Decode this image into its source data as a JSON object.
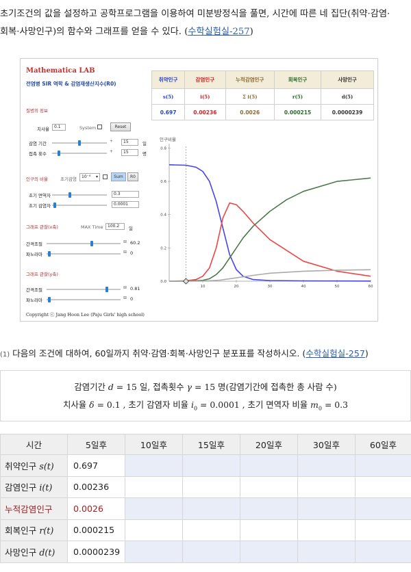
{
  "intro": {
    "line1": "초기조건의 값을 설정하고 공학프로그램을 이용하여 미분방정식을 풀면, 시간에 따른 네 집단(취약·감염·",
    "line2": "회복·사망인구)의 함수와 그래프를 얻을 수 있다. (",
    "link": "수학실험실-257",
    "close": ")"
  },
  "lab": {
    "title": "Mathematica LAB",
    "subtitle": "전염병 SIR 역학 & 감염재생산지수(R0)",
    "sec_disease": "질병의 정보",
    "fatality_label": "치사율",
    "fatality_value": "0.1",
    "system_label": "System",
    "reset_label": "Reset",
    "inf_period_label": "감염 기간",
    "inf_period_value": "15",
    "inf_period_unit": "일",
    "contacts_label": "접촉 횟수",
    "contacts_value": "15",
    "contacts_unit": "명",
    "sec_population": "인구의 비율",
    "init_inf_label": "초기감염",
    "init_inf_select": "10⁻⁴",
    "sum_label": "Sum",
    "r0_label": "R0",
    "immune_label": "초기 면역자",
    "immune_value": "0.3",
    "init_infected_label": "초기 감염자",
    "init_infected_value": "0.0001",
    "sec_graph_x": "그래프 관찰(x축)",
    "maxtime_label": "MAX Time",
    "maxtime_value": "100.2",
    "maxtime_unit": "일",
    "interval_label": "간격조절",
    "interval_x_value": "60.2",
    "pan_label": "파노라마",
    "pan_x_value": "0",
    "sec_graph_y": "그래프 관찰(y축)",
    "interval_y_value": "0.81",
    "pan_y_value": "0",
    "copyright": "Copyright ⓒ Jang Hoon Lee (Paju Girls' high school)"
  },
  "results": {
    "headers": [
      "취약인구",
      "감염인구",
      "누적감염인구",
      "회복인구",
      "사망인구"
    ],
    "symbols": [
      "s(5)",
      "i(5)",
      "Σ i(5)",
      "r(5)",
      "d(5)"
    ],
    "values": [
      "0.697",
      "0.00236",
      "0.0026",
      "0.000215",
      "0.0000239"
    ],
    "colors": [
      "#2244cc",
      "#d02020",
      "#8a6a30",
      "#2a6a2a",
      "#333333"
    ]
  },
  "chart_data": {
    "type": "line",
    "title": "",
    "ylabel": "인구비율",
    "xlabel": "",
    "xlim": [
      0,
      60
    ],
    "ylim": [
      0,
      0.81
    ],
    "xticks": [
      "10",
      "20",
      "30",
      "40",
      "50",
      "60"
    ],
    "yticks": [
      "0.2",
      "0.4",
      "0.6",
      "0.8"
    ],
    "zero_label": "0.0",
    "marker_x": 5,
    "series": [
      {
        "color": "#4444ee",
        "x": [
          0,
          5,
          8,
          10,
          12,
          14,
          16,
          18,
          20,
          22,
          25,
          30,
          40,
          60
        ],
        "y": [
          0.7,
          0.697,
          0.685,
          0.66,
          0.6,
          0.48,
          0.32,
          0.16,
          0.07,
          0.03,
          0.01,
          0.004,
          0.002,
          0.001
        ]
      },
      {
        "color": "#ee4444",
        "x": [
          0,
          5,
          8,
          10,
          12,
          14,
          16,
          18,
          20,
          22,
          25,
          30,
          40,
          50,
          60
        ],
        "y": [
          0.0001,
          0.00236,
          0.01,
          0.03,
          0.08,
          0.2,
          0.38,
          0.47,
          0.46,
          0.42,
          0.35,
          0.25,
          0.12,
          0.06,
          0.03
        ]
      },
      {
        "color": "#4a7a4a",
        "x": [
          0,
          5,
          10,
          12,
          14,
          16,
          18,
          20,
          22,
          25,
          30,
          35,
          40,
          50,
          60
        ],
        "y": [
          0,
          0.000215,
          0.005,
          0.015,
          0.04,
          0.08,
          0.14,
          0.2,
          0.26,
          0.33,
          0.42,
          0.49,
          0.54,
          0.6,
          0.62
        ]
      },
      {
        "color": "#aaaaaa",
        "x": [
          0,
          5,
          10,
          15,
          20,
          25,
          30,
          40,
          50,
          60
        ],
        "y": [
          0,
          2.39e-05,
          0.001,
          0.006,
          0.02,
          0.035,
          0.048,
          0.06,
          0.066,
          0.069
        ]
      }
    ]
  },
  "problem": {
    "num": "(1)",
    "text": "다음의 조건에 대하여, 60일까지 취약·감염·회복·사망인구 분포표를 작성하시오. (",
    "link": "수학실험실-257",
    "close": ")"
  },
  "conditions": {
    "l1_a": "감염기간",
    "l1_b": "d",
    "l1_c": "= 15 일, 접촉횟수",
    "l1_d": "γ",
    "l1_e": "= 15 명(감염기간에 접촉한 총 사람 수)",
    "l2_a": "치사율",
    "l2_b": "δ",
    "l2_c": "= 0.1 , 초기 감염자 비율",
    "l2_d": "i",
    "l2_e": "0",
    "l2_f": "= 0.0001 , 초기 면역자 비율",
    "l2_g": "m",
    "l2_h": "0",
    "l2_i": "= 0.3"
  },
  "dist_table": {
    "headers": [
      "시간",
      "5일후",
      "10일후",
      "15일후",
      "20일후",
      "30일후",
      "60일후"
    ],
    "rows": [
      {
        "label": "취약인구",
        "sym": "s(t)",
        "value": "0.697"
      },
      {
        "label": "감염인구",
        "sym": "i(t)",
        "value": "0.00236"
      },
      {
        "label": "누적감염인구",
        "sym": "",
        "value": "0.0026"
      },
      {
        "label": "회복인구",
        "sym": "r(t)",
        "value": "0.000215"
      },
      {
        "label": "사망인구",
        "sym": "d(t)",
        "value": "0.0000239"
      }
    ]
  }
}
